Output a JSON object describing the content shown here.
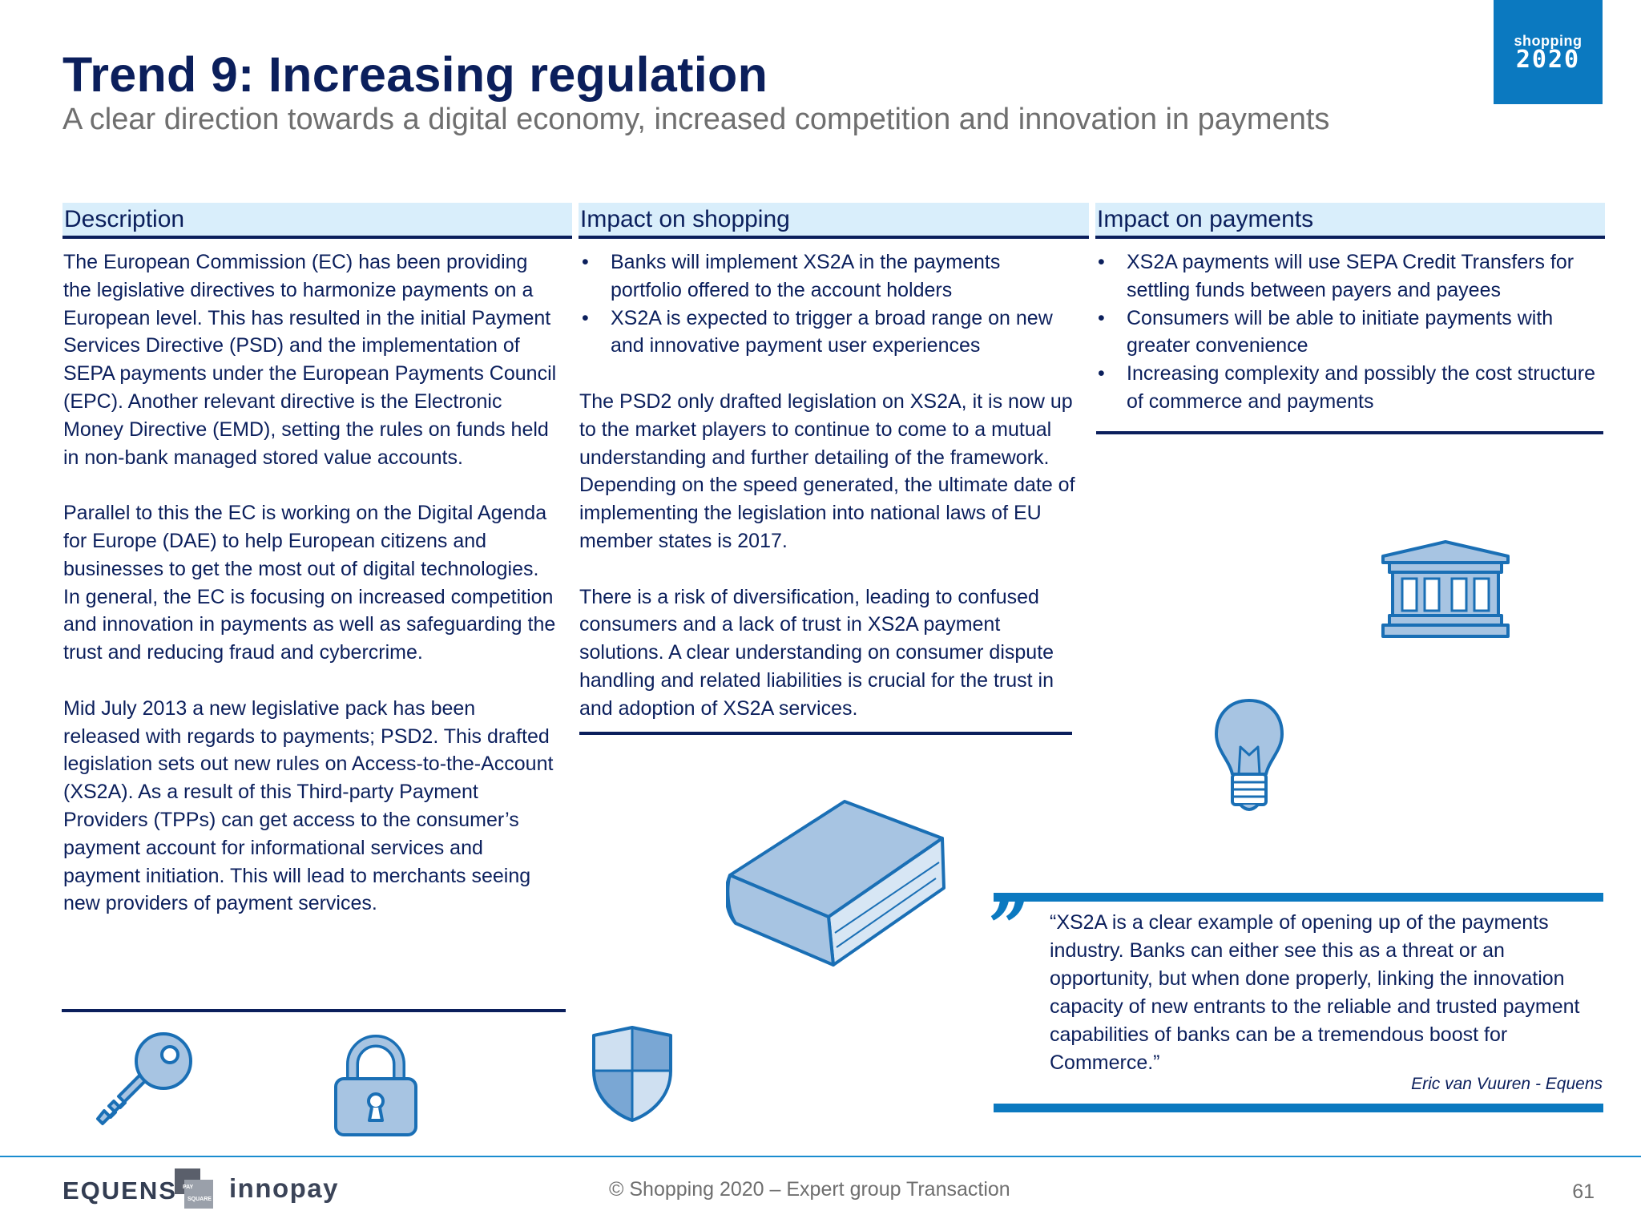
{
  "header": {
    "title": "Trend 9: Increasing regulation",
    "subtitle": "A clear direction towards a digital economy, increased competition and innovation in payments",
    "logo_line1": "shopping",
    "logo_line2": "2020"
  },
  "columns": {
    "description": {
      "heading": "Description",
      "paragraphs": [
        "The European Commission (EC) has been providing the legislative directives to harmonize payments on a European level. This has resulted in the initial Payment Services Directive (PSD) and the implementation of SEPA payments under the European Payments Council (EPC). Another relevant directive is the Electronic Money Directive (EMD), setting the rules on funds held in non-bank managed stored value accounts.",
        "Parallel to this the EC is working on the Digital Agenda for Europe (DAE) to help European citizens and businesses to get the most out of digital technologies. In general, the EC is focusing on increased competition and innovation in payments as well as safeguarding the trust and reducing fraud and cybercrime.",
        "Mid July 2013 a new legislative pack has been released with regards to payments; PSD2. This drafted legislation sets out new rules on Access-to-the-Account (XS2A). As a result of this Third-party Payment Providers (TPPs) can get access to the consumer’s payment account for informational services and payment initiation. This will lead to merchants seeing new providers of payment services."
      ]
    },
    "shopping": {
      "heading": "Impact on shopping",
      "bullets": [
        "Banks will implement XS2A in the payments portfolio offered to the account holders",
        "XS2A is expected to trigger a broad range on new and innovative payment user experiences"
      ],
      "paragraphs": [
        "The PSD2 only drafted legislation on XS2A, it is now up to the market players to continue to come to a mutual understanding and further detailing of the framework. Depending on the speed generated, the ultimate date of implementing the legislation into national laws of EU member states is 2017.",
        "There is a risk of diversification, leading to confused consumers and a lack of trust in XS2A payment solutions. A clear understanding on consumer dispute handling and related liabilities is crucial for the trust in and adoption of XS2A services."
      ]
    },
    "payments": {
      "heading": "Impact on payments",
      "bullets": [
        "XS2A payments will use SEPA Credit Transfers for settling funds between payers and payees",
        "Consumers will be able to initiate payments with greater convenience",
        "Increasing complexity and possibly the cost structure of commerce and payments"
      ]
    }
  },
  "quote": {
    "text": "“XS2A is a clear example of opening up of the payments industry. Banks can either see this as a threat or an opportunity, but when done properly, linking the innovation capacity of new entrants to the reliable and trusted payment capabilities of banks can be a tremendous boost for Commerce.”",
    "author": "Eric van Vuuren - Equens",
    "mark": "”"
  },
  "icons": [
    "key-icon",
    "padlock-icon",
    "shield-icon",
    "book-icon",
    "lightbulb-icon",
    "bank-building-icon"
  ],
  "footer": {
    "logo_equens": "EQUENS",
    "logo_paysquare_top": "PAY",
    "logo_paysquare_bottom": "SQUARE",
    "logo_innopay": "innopay",
    "center_text": "© Shopping 2020 – Expert group Transaction",
    "page_number": "61"
  },
  "colors": {
    "navy": "#0b1f5c",
    "accent_blue": "#0b79c0",
    "header_band": "#d9eefb",
    "icon_fill": "#a7c4e2",
    "icon_stroke": "#1a6fb5",
    "grey_text": "#6f6f6f"
  }
}
